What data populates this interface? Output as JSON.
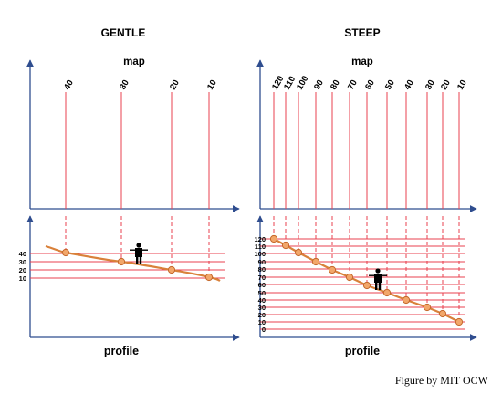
{
  "panels": [
    {
      "title": "GENTLE",
      "map_label": "map",
      "profile_label": "profile",
      "contours": [
        "40",
        "30",
        "20",
        "10"
      ],
      "elevations": [
        "40",
        "30",
        "20",
        "10"
      ]
    },
    {
      "title": "STEEP",
      "map_label": "map",
      "profile_label": "profile",
      "contours": [
        "120",
        "110",
        "100",
        "90",
        "80",
        "70",
        "60",
        "50",
        "40",
        "30",
        "20",
        "10"
      ],
      "elevations": [
        "120",
        "110",
        "100",
        "90",
        "80",
        "70",
        "60",
        "50",
        "40",
        "30",
        "20",
        "10",
        "0"
      ]
    }
  ],
  "credit": "Figure by MIT OCW",
  "colors": {
    "axis": "#2f4d8f",
    "contour": "#e9414f",
    "profile": "#d9813a",
    "dot_fill": "#f2a76a",
    "dot_stroke": "#c4672a",
    "person": "#000000"
  }
}
